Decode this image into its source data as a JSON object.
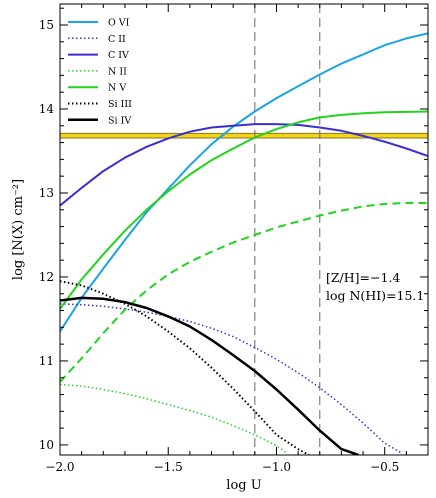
{
  "chart_data": {
    "type": "line",
    "xlabel": "log U",
    "ylabel": "log [N(X) cm⁻²]",
    "xlim": [
      -2.0,
      -0.3
    ],
    "ylim": [
      9.88,
      15.25
    ],
    "xticks": [
      -2.0,
      -1.5,
      -1.0,
      -0.5
    ],
    "xtick_labels": [
      "−2.0",
      "−1.5",
      "−1.0",
      "−0.5"
    ],
    "yticks": [
      10,
      11,
      12,
      13,
      14,
      15
    ],
    "ytick_labels": [
      "10",
      "11",
      "12",
      "13",
      "14",
      "15"
    ],
    "grid": false,
    "legend_position": "top-left",
    "annotations": [
      "[Z/H]=−1.4",
      "log N(HI)=15.1"
    ],
    "vlines": [
      -1.1,
      -0.8
    ],
    "hband": {
      "ymin": 13.655,
      "ymax": 13.71,
      "color": "#f2d21b",
      "edge_color": "#8a7a10"
    },
    "series": [
      {
        "name": "O VI",
        "color": "#1aa3e6",
        "dash": "solid",
        "width": 2.0,
        "x": [
          -2.0,
          -1.9,
          -1.8,
          -1.7,
          -1.6,
          -1.5,
          -1.4,
          -1.3,
          -1.2,
          -1.1,
          -1.0,
          -0.9,
          -0.8,
          -0.7,
          -0.6,
          -0.5,
          -0.4,
          -0.3
        ],
        "y": [
          11.35,
          11.75,
          12.1,
          12.44,
          12.77,
          13.05,
          13.33,
          13.58,
          13.79,
          13.97,
          14.13,
          14.27,
          14.41,
          14.54,
          14.65,
          14.76,
          14.84,
          14.9
        ]
      },
      {
        "name": "C II",
        "color": "#3a2fd1",
        "dash": "dotted",
        "width": 1.5,
        "x": [
          -2.0,
          -1.9,
          -1.8,
          -1.7,
          -1.6,
          -1.5,
          -1.4,
          -1.3,
          -1.2,
          -1.1,
          -1.0,
          -0.9,
          -0.8,
          -0.7,
          -0.6,
          -0.5,
          -0.42
        ],
        "y": [
          11.68,
          11.67,
          11.65,
          11.62,
          11.58,
          11.53,
          11.47,
          11.39,
          11.29,
          11.16,
          11.02,
          10.86,
          10.68,
          10.48,
          10.26,
          10.02,
          9.9
        ]
      },
      {
        "name": "C IV",
        "color": "#3a2fd1",
        "dash": "solid",
        "width": 2.0,
        "x": [
          -2.0,
          -1.9,
          -1.8,
          -1.7,
          -1.6,
          -1.5,
          -1.4,
          -1.3,
          -1.2,
          -1.1,
          -1.0,
          -0.9,
          -0.8,
          -0.7,
          -0.6,
          -0.5,
          -0.4,
          -0.3
        ],
        "y": [
          12.85,
          13.06,
          13.26,
          13.42,
          13.55,
          13.65,
          13.73,
          13.78,
          13.8,
          13.82,
          13.82,
          13.81,
          13.78,
          13.74,
          13.68,
          13.61,
          13.53,
          13.44
        ]
      },
      {
        "name": "N II",
        "color": "#22d41e",
        "dash": "dotted",
        "width": 1.5,
        "x": [
          -2.0,
          -1.9,
          -1.8,
          -1.7,
          -1.6,
          -1.5,
          -1.4,
          -1.3,
          -1.2,
          -1.1,
          -1.0,
          -0.95
        ],
        "y": [
          10.72,
          10.7,
          10.66,
          10.61,
          10.55,
          10.48,
          10.41,
          10.33,
          10.23,
          10.12,
          9.99,
          9.9
        ]
      },
      {
        "name": "N V",
        "color": "#22d41e",
        "dash": "solid",
        "width": 2.0,
        "x": [
          -2.0,
          -1.9,
          -1.8,
          -1.7,
          -1.6,
          -1.5,
          -1.4,
          -1.3,
          -1.2,
          -1.1,
          -1.0,
          -0.9,
          -0.8,
          -0.7,
          -0.6,
          -0.5,
          -0.4,
          -0.3
        ],
        "y": [
          11.62,
          11.97,
          12.27,
          12.55,
          12.8,
          13.02,
          13.22,
          13.39,
          13.53,
          13.66,
          13.76,
          13.84,
          13.9,
          13.93,
          13.95,
          13.96,
          13.965,
          13.97
        ]
      },
      {
        "name": "",
        "color": "#22d41e",
        "dash": "dashed",
        "width": 2.0,
        "x": [
          -2.0,
          -1.9,
          -1.8,
          -1.7,
          -1.6,
          -1.5,
          -1.4,
          -1.3,
          -1.2,
          -1.1,
          -1.0,
          -0.9,
          -0.8,
          -0.7,
          -0.6,
          -0.5,
          -0.4,
          -0.3
        ],
        "y": [
          10.75,
          11.03,
          11.33,
          11.61,
          11.84,
          12.03,
          12.18,
          12.3,
          12.41,
          12.5,
          12.59,
          12.66,
          12.73,
          12.79,
          12.84,
          12.87,
          12.88,
          12.88
        ]
      },
      {
        "name": "Si III",
        "color": "#000000",
        "dash": "dotted",
        "width": 2.0,
        "x": [
          -2.0,
          -1.9,
          -1.8,
          -1.7,
          -1.6,
          -1.5,
          -1.4,
          -1.3,
          -1.2,
          -1.1,
          -1.0,
          -0.9,
          -0.85
        ],
        "y": [
          11.95,
          11.9,
          11.8,
          11.68,
          11.53,
          11.35,
          11.15,
          10.92,
          10.67,
          10.4,
          10.12,
          9.95,
          9.88
        ]
      },
      {
        "name": "Si IV",
        "color": "#000000",
        "dash": "solid",
        "width": 2.5,
        "x": [
          -2.0,
          -1.9,
          -1.8,
          -1.7,
          -1.6,
          -1.5,
          -1.4,
          -1.3,
          -1.2,
          -1.1,
          -1.0,
          -0.9,
          -0.8,
          -0.7,
          -0.62
        ],
        "y": [
          11.72,
          11.75,
          11.74,
          11.7,
          11.63,
          11.53,
          11.41,
          11.25,
          11.07,
          10.88,
          10.66,
          10.42,
          10.17,
          9.95,
          9.88
        ]
      }
    ]
  }
}
